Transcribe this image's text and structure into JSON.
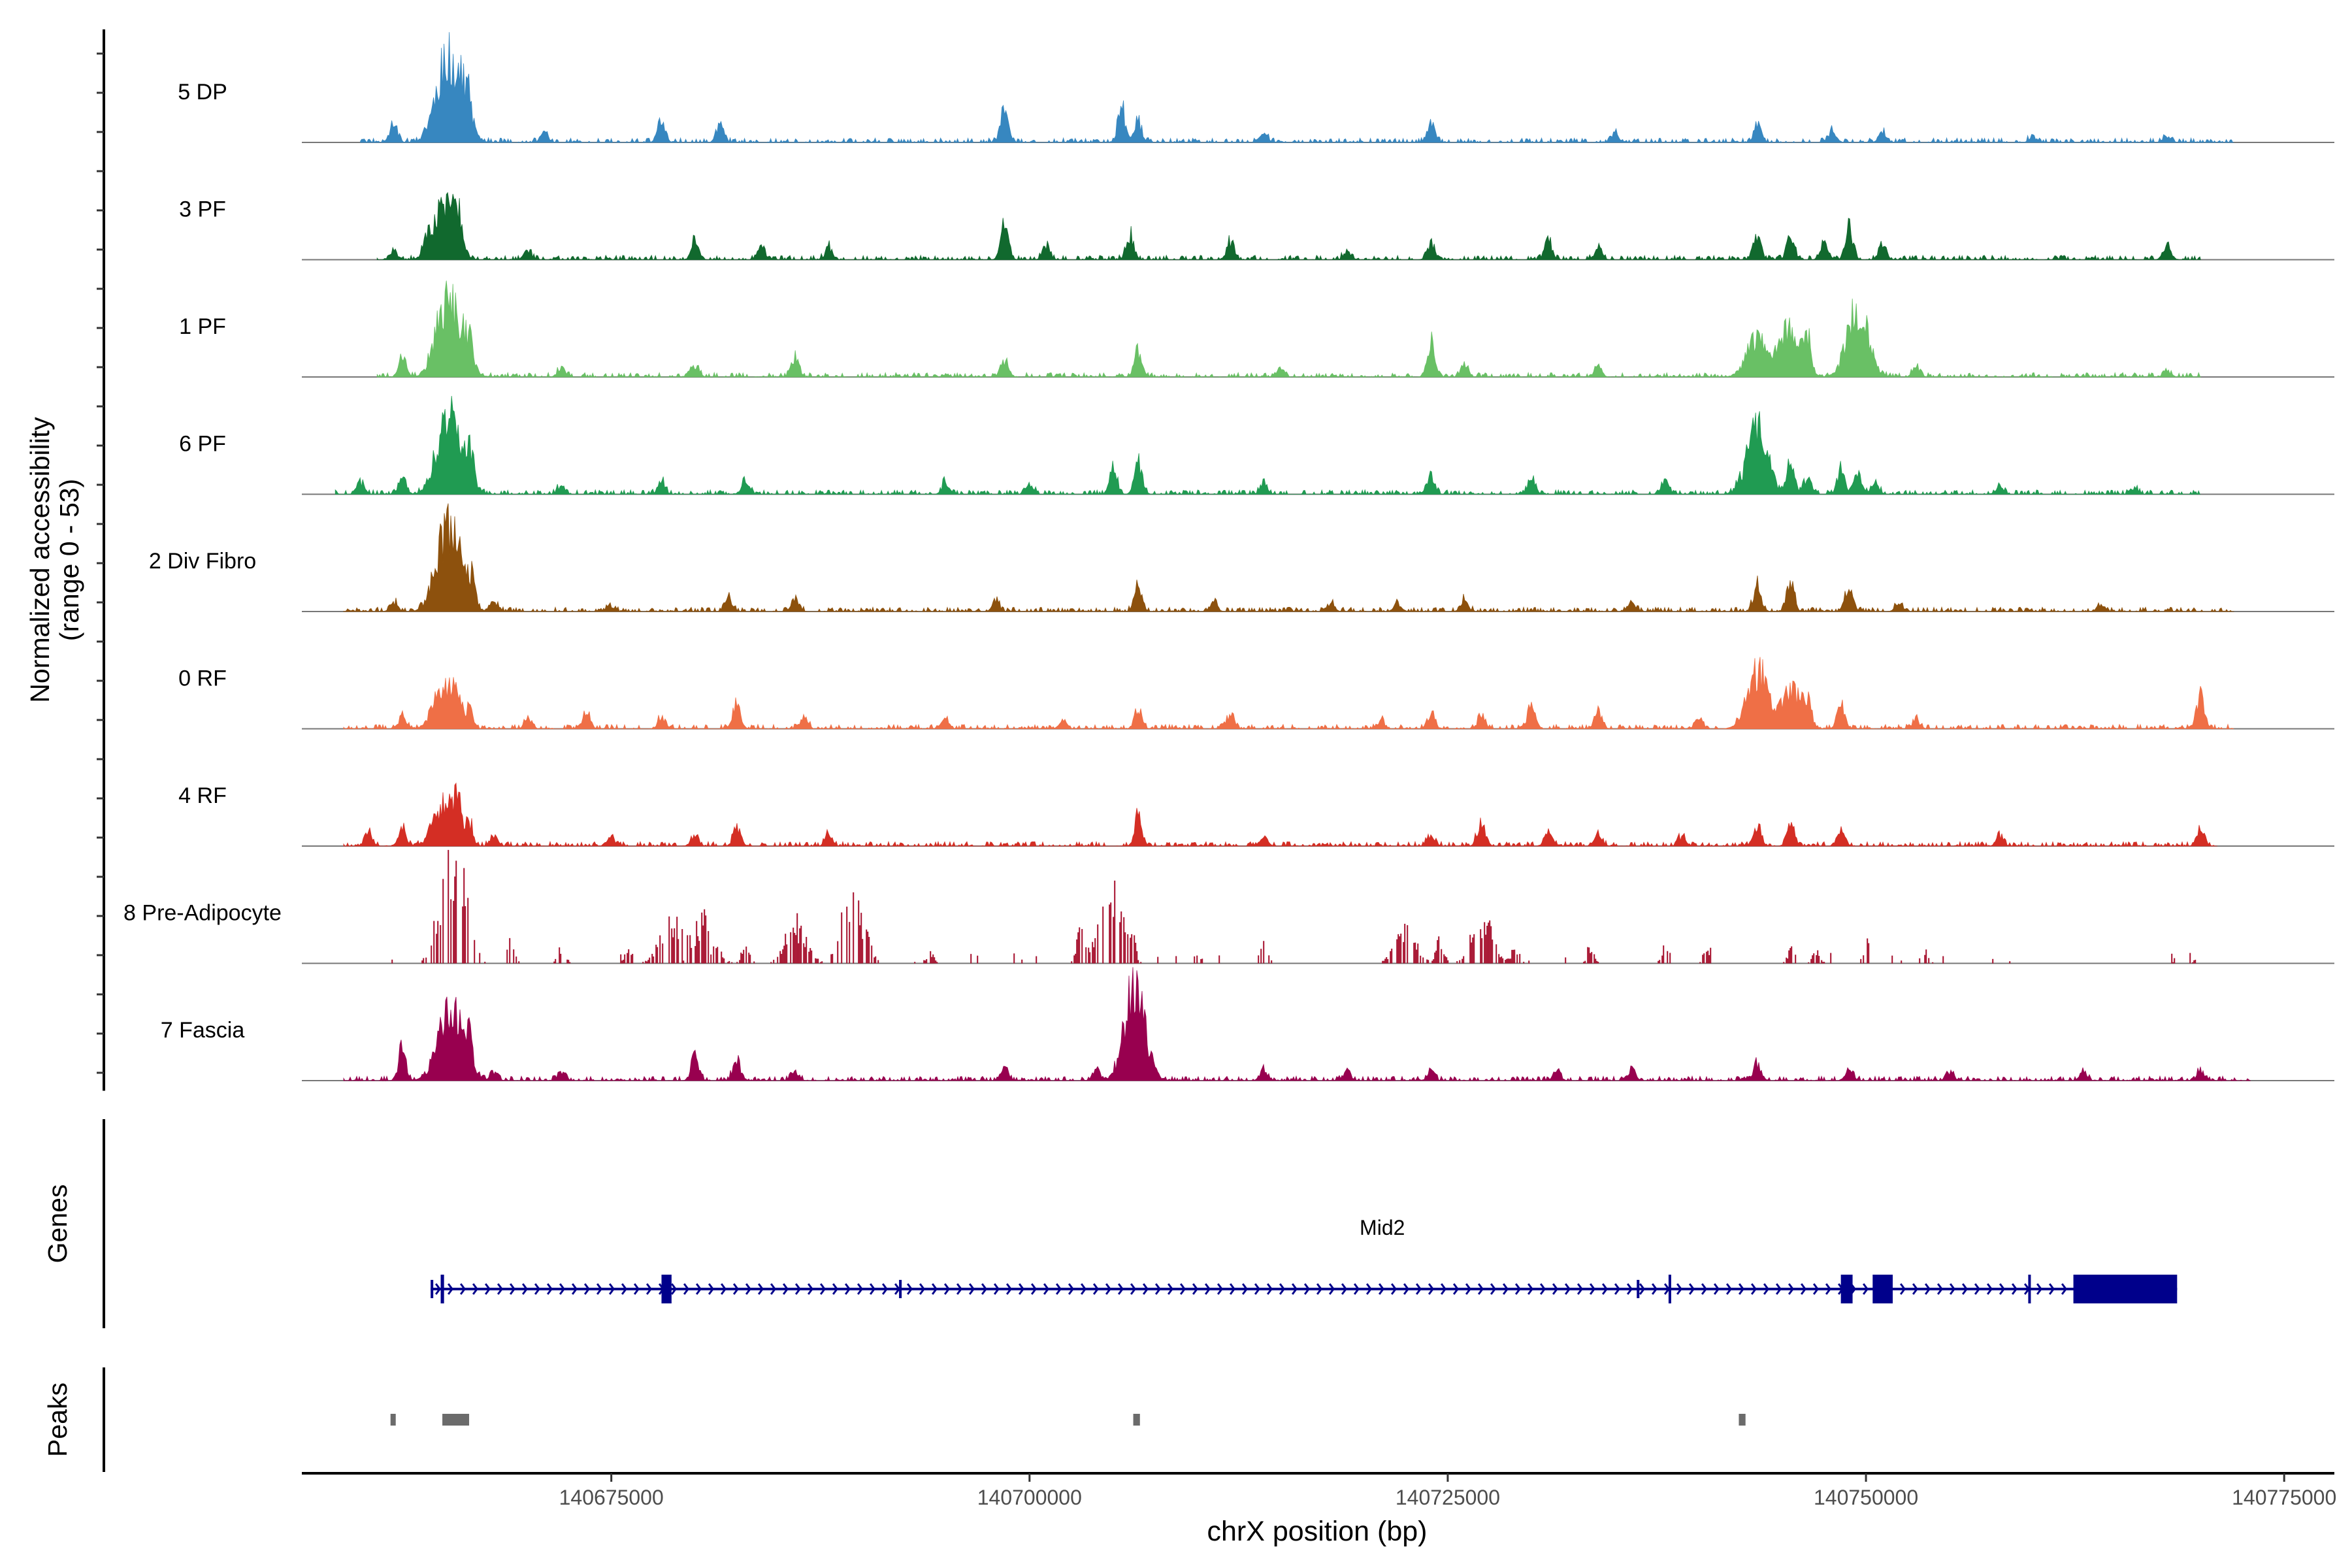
{
  "chart_data": {
    "type": "area",
    "chromosome": "chrX",
    "x_range": [
      140656500,
      140778000
    ],
    "y_range": [
      0,
      53
    ],
    "ylabel_line1": "Normalized accessibility",
    "ylabel_line2": "(range 0 - 53)",
    "xlabel": "chrX position (bp)",
    "x_ticks": [
      {
        "value": 140675000,
        "label": "140675000"
      },
      {
        "value": 140700000,
        "label": "140700000"
      },
      {
        "value": 140725000,
        "label": "140725000"
      },
      {
        "value": 140750000,
        "label": "140750000"
      },
      {
        "value": 140775000,
        "label": "140775000"
      }
    ],
    "tracks": [
      {
        "name": "5 DP",
        "color": "#3787C0",
        "sparse": false,
        "seed": 11,
        "extent": [
          140660000,
          140772000
        ],
        "peaks": [
          [
            140662000,
            0.35
          ],
          [
            140665000,
            1.0
          ],
          [
            140665800,
            0.8
          ],
          [
            140666400,
            0.45
          ],
          [
            140671000,
            0.15
          ],
          [
            140678000,
            0.35
          ],
          [
            140681500,
            0.25
          ],
          [
            140698500,
            0.5
          ],
          [
            140705500,
            0.6
          ],
          [
            140706500,
            0.35
          ],
          [
            140714000,
            0.15
          ],
          [
            140724000,
            0.3
          ],
          [
            140735000,
            0.15
          ],
          [
            140743500,
            0.3
          ],
          [
            140748000,
            0.2
          ],
          [
            140751000,
            0.15
          ],
          [
            140760000,
            0.1
          ],
          [
            140768000,
            0.1
          ]
        ]
      },
      {
        "name": "3 PF",
        "color": "#11692E",
        "sparse": false,
        "seed": 23,
        "extent": [
          140661000,
          140770000
        ],
        "peaks": [
          [
            140662000,
            0.15
          ],
          [
            140664000,
            0.3
          ],
          [
            140665000,
            0.95
          ],
          [
            140665800,
            0.6
          ],
          [
            140670000,
            0.15
          ],
          [
            140680000,
            0.3
          ],
          [
            140684000,
            0.2
          ],
          [
            140688000,
            0.2
          ],
          [
            140698500,
            0.55
          ],
          [
            140701000,
            0.25
          ],
          [
            140706000,
            0.4
          ],
          [
            140712000,
            0.3
          ],
          [
            140719000,
            0.15
          ],
          [
            140724000,
            0.3
          ],
          [
            140731000,
            0.3
          ],
          [
            140734000,
            0.2
          ],
          [
            140743500,
            0.45
          ],
          [
            140745500,
            0.45
          ],
          [
            140747500,
            0.3
          ],
          [
            140749000,
            0.55
          ],
          [
            140751000,
            0.25
          ],
          [
            140768000,
            0.25
          ]
        ]
      },
      {
        "name": "1 PF",
        "color": "#69C065",
        "sparse": false,
        "seed": 37,
        "extent": [
          140661000,
          140770000
        ],
        "peaks": [
          [
            140662500,
            0.35
          ],
          [
            140665000,
            0.85
          ],
          [
            140665800,
            0.7
          ],
          [
            140666500,
            0.35
          ],
          [
            140672000,
            0.15
          ],
          [
            140680000,
            0.2
          ],
          [
            140686000,
            0.3
          ],
          [
            140698500,
            0.3
          ],
          [
            140706500,
            0.45
          ],
          [
            140715000,
            0.15
          ],
          [
            140724000,
            0.55
          ],
          [
            140726000,
            0.2
          ],
          [
            140734000,
            0.15
          ],
          [
            140743500,
            0.65
          ],
          [
            140745500,
            0.85
          ],
          [
            140746500,
            0.5
          ],
          [
            140749500,
            1.15
          ],
          [
            140753000,
            0.2
          ],
          [
            140768000,
            0.1
          ]
        ]
      },
      {
        "name": "6 PF",
        "color": "#209B52",
        "sparse": false,
        "seed": 41,
        "extent": [
          140658500,
          140770000
        ],
        "peaks": [
          [
            140660000,
            0.2
          ],
          [
            140662500,
            0.3
          ],
          [
            140665000,
            0.9
          ],
          [
            140665800,
            0.7
          ],
          [
            140666600,
            0.35
          ],
          [
            140672000,
            0.15
          ],
          [
            140678000,
            0.2
          ],
          [
            140683000,
            0.25
          ],
          [
            140695000,
            0.2
          ],
          [
            140700000,
            0.2
          ],
          [
            140705000,
            0.4
          ],
          [
            140706500,
            0.55
          ],
          [
            140714000,
            0.2
          ],
          [
            140724000,
            0.3
          ],
          [
            140730000,
            0.25
          ],
          [
            140738000,
            0.2
          ],
          [
            140743500,
            1.1
          ],
          [
            140745500,
            0.55
          ],
          [
            140746500,
            0.3
          ],
          [
            140748500,
            0.4
          ],
          [
            140749500,
            0.35
          ],
          [
            140750500,
            0.25
          ],
          [
            140758000,
            0.15
          ],
          [
            140766000,
            0.1
          ]
        ]
      },
      {
        "name": "2 Div Fibro",
        "color": "#8D510D",
        "sparse": false,
        "seed": 53,
        "extent": [
          140659000,
          140772000
        ],
        "peaks": [
          [
            140662000,
            0.15
          ],
          [
            140665000,
            1.0
          ],
          [
            140665800,
            0.65
          ],
          [
            140666600,
            0.35
          ],
          [
            140668000,
            0.15
          ],
          [
            140675000,
            0.1
          ],
          [
            140682000,
            0.25
          ],
          [
            140686000,
            0.2
          ],
          [
            140698000,
            0.15
          ],
          [
            140706500,
            0.45
          ],
          [
            140711000,
            0.15
          ],
          [
            140718000,
            0.15
          ],
          [
            140722000,
            0.15
          ],
          [
            140726000,
            0.2
          ],
          [
            140736000,
            0.15
          ],
          [
            140743500,
            0.45
          ],
          [
            140745500,
            0.45
          ],
          [
            140749000,
            0.45
          ],
          [
            140752000,
            0.15
          ],
          [
            140764000,
            0.1
          ]
        ]
      },
      {
        "name": "0 RF",
        "color": "#EF6F46",
        "sparse": false,
        "seed": 67,
        "extent": [
          140659000,
          140772000
        ],
        "peaks": [
          [
            140662500,
            0.2
          ],
          [
            140665000,
            0.7
          ],
          [
            140665800,
            0.4
          ],
          [
            140666500,
            0.3
          ],
          [
            140670000,
            0.15
          ],
          [
            140673500,
            0.3
          ],
          [
            140678000,
            0.2
          ],
          [
            140682500,
            0.45
          ],
          [
            140686500,
            0.2
          ],
          [
            140695000,
            0.15
          ],
          [
            140702000,
            0.15
          ],
          [
            140706500,
            0.35
          ],
          [
            140712000,
            0.25
          ],
          [
            140721000,
            0.15
          ],
          [
            140724000,
            0.25
          ],
          [
            140727000,
            0.2
          ],
          [
            140730000,
            0.45
          ],
          [
            140734000,
            0.3
          ],
          [
            140740000,
            0.15
          ],
          [
            140743500,
            0.95
          ],
          [
            140745500,
            0.65
          ],
          [
            140746500,
            0.35
          ],
          [
            140748500,
            0.4
          ],
          [
            140753000,
            0.15
          ],
          [
            140770000,
            0.6
          ]
        ]
      },
      {
        "name": "4 RF",
        "color": "#D42E24",
        "sparse": false,
        "seed": 79,
        "extent": [
          140659000,
          140771000
        ],
        "peaks": [
          [
            140660500,
            0.25
          ],
          [
            140662500,
            0.3
          ],
          [
            140665000,
            0.7
          ],
          [
            140665800,
            0.6
          ],
          [
            140666500,
            0.4
          ],
          [
            140668000,
            0.2
          ],
          [
            140675000,
            0.15
          ],
          [
            140680000,
            0.2
          ],
          [
            140682500,
            0.3
          ],
          [
            140688000,
            0.2
          ],
          [
            140706500,
            0.5
          ],
          [
            140714000,
            0.15
          ],
          [
            140724000,
            0.2
          ],
          [
            140727000,
            0.4
          ],
          [
            140731000,
            0.25
          ],
          [
            140734000,
            0.2
          ],
          [
            140739000,
            0.15
          ],
          [
            140743500,
            0.3
          ],
          [
            140745500,
            0.35
          ],
          [
            140748500,
            0.25
          ],
          [
            140758000,
            0.15
          ],
          [
            140770000,
            0.3
          ]
        ]
      },
      {
        "name": "8 Pre-Adipocyte",
        "color": "#A50E2B",
        "sparse": true,
        "seed": 97,
        "extent": [
          140661000,
          140770000
        ],
        "peaks": [
          [
            140665000,
            0.9
          ],
          [
            140665800,
            1.45
          ],
          [
            140669000,
            0.4
          ],
          [
            140672000,
            0.3
          ],
          [
            140676000,
            0.3
          ],
          [
            140678500,
            0.8
          ],
          [
            140680500,
            0.75
          ],
          [
            140683000,
            0.35
          ],
          [
            140686000,
            0.7
          ],
          [
            140688500,
            0.45
          ],
          [
            140689500,
            1.05
          ],
          [
            140694000,
            0.2
          ],
          [
            140703000,
            0.6
          ],
          [
            140704500,
            0.75
          ],
          [
            140705000,
            0.65
          ],
          [
            140706000,
            0.55
          ],
          [
            140710000,
            0.15
          ],
          [
            140714000,
            0.35
          ],
          [
            140722500,
            0.65
          ],
          [
            140724500,
            0.4
          ],
          [
            140727000,
            0.8
          ],
          [
            140729000,
            0.3
          ],
          [
            140733500,
            0.25
          ],
          [
            140738000,
            0.3
          ],
          [
            140740500,
            0.3
          ],
          [
            140745500,
            0.25
          ],
          [
            140747000,
            0.2
          ],
          [
            140750000,
            0.35
          ],
          [
            140753500,
            0.25
          ],
          [
            140770000,
            0.3
          ]
        ]
      },
      {
        "name": "7 Fascia",
        "color": "#98004F",
        "sparse": false,
        "seed": 113,
        "extent": [
          140659000,
          140773000
        ],
        "peaks": [
          [
            140662500,
            0.55
          ],
          [
            140665000,
            0.7
          ],
          [
            140665800,
            0.75
          ],
          [
            140666500,
            0.4
          ],
          [
            140668000,
            0.15
          ],
          [
            140672000,
            0.15
          ],
          [
            140680000,
            0.4
          ],
          [
            140682500,
            0.35
          ],
          [
            140686000,
            0.15
          ],
          [
            140698500,
            0.2
          ],
          [
            140704000,
            0.2
          ],
          [
            140706300,
            1.55
          ],
          [
            140714000,
            0.15
          ],
          [
            140719000,
            0.15
          ],
          [
            140724000,
            0.15
          ],
          [
            140731500,
            0.15
          ],
          [
            140736000,
            0.2
          ],
          [
            140743500,
            0.3
          ],
          [
            140749000,
            0.15
          ],
          [
            140755000,
            0.15
          ],
          [
            140763000,
            0.15
          ],
          [
            140770000,
            0.15
          ]
        ]
      }
    ],
    "genes_label": "Genes",
    "gene": {
      "name": "Mid2",
      "color": "#00008B",
      "start": 140664200,
      "end": 140768600,
      "exons": [
        {
          "start": 140664200,
          "end": 140664350,
          "type": "utr"
        },
        {
          "start": 140664800,
          "end": 140665000,
          "type": "cds"
        },
        {
          "start": 140678000,
          "end": 140678600,
          "type": "cds"
        },
        {
          "start": 140692200,
          "end": 140692300,
          "type": "utr"
        },
        {
          "start": 140736300,
          "end": 140736400,
          "type": "utr"
        },
        {
          "start": 140738200,
          "end": 140738300,
          "type": "cds"
        },
        {
          "start": 140748500,
          "end": 140749200,
          "type": "cds"
        },
        {
          "start": 140750400,
          "end": 140751600,
          "type": "cds"
        },
        {
          "start": 140759700,
          "end": 140759800,
          "type": "cds"
        },
        {
          "start": 140762400,
          "end": 140768600,
          "type": "cds"
        }
      ]
    },
    "peaks_label": "Peaks",
    "peak_color": "#6B6B6B",
    "peak_regions": [
      [
        140661800,
        140662100
      ],
      [
        140664900,
        140666500
      ],
      [
        140706200,
        140706600
      ],
      [
        140742400,
        140742800
      ]
    ]
  }
}
